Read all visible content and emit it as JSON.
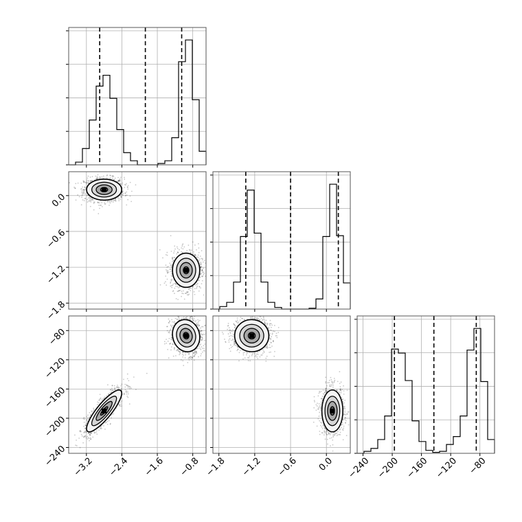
{
  "chart_data": {
    "type": "corner",
    "parameters": [
      {
        "id": "p0",
        "label": "",
        "range": [
          -3.6,
          -0.5
        ],
        "ticks": [
          "−3.2",
          "−2.4",
          "−1.6",
          "−0.8"
        ],
        "tick_values": [
          -3.2,
          -2.4,
          -1.6,
          -0.8
        ]
      },
      {
        "id": "p1",
        "label": "",
        "range": [
          -1.9,
          0.4
        ],
        "ticks": [
          "−1.8",
          "−1.2",
          "−0.6",
          "0.0"
        ],
        "tick_values": [
          -1.8,
          -1.2,
          -0.6,
          0.0
        ]
      },
      {
        "id": "p2",
        "label": "",
        "range": [
          -248,
          -60
        ],
        "ticks": [
          "−240",
          "−200",
          "−160",
          "−120",
          "−80"
        ],
        "tick_values": [
          -240,
          -200,
          -160,
          -120,
          -80
        ]
      }
    ],
    "histograms": [
      {
        "param": "p0",
        "bin_edges": [
          -3.6,
          -3.445,
          -3.29,
          -3.135,
          -2.98,
          -2.825,
          -2.67,
          -2.515,
          -2.36,
          -2.205,
          -2.05,
          -1.895,
          -1.74,
          -1.585,
          -1.43,
          -1.275,
          -1.12,
          -0.965,
          -0.81,
          -0.655,
          -0.5
        ],
        "counts": [
          0,
          2,
          12,
          33,
          58,
          66,
          49,
          26,
          9,
          3,
          0,
          0,
          0,
          1,
          3,
          20,
          76,
          92,
          48,
          10
        ],
        "quantiles": [
          -2.9,
          -1.87,
          -1.05
        ]
      },
      {
        "param": "p1",
        "bin_edges": [
          -1.9,
          -1.785,
          -1.67,
          -1.555,
          -1.44,
          -1.325,
          -1.21,
          -1.095,
          -0.98,
          -0.865,
          -0.75,
          -0.635,
          -0.52,
          -0.405,
          -0.29,
          -0.175,
          -0.06,
          0.055,
          0.17,
          0.285,
          0.4
        ],
        "counts": [
          0,
          3,
          8,
          32,
          86,
          141,
          90,
          32,
          8,
          2,
          0,
          0,
          0,
          0,
          1,
          12,
          86,
          148,
          87,
          31
        ],
        "quantiles": [
          -1.35,
          -0.6,
          0.2
        ]
      },
      {
        "param": "p2",
        "bin_edges": [
          -248,
          -238.6,
          -229.2,
          -219.8,
          -210.4,
          -201,
          -191.6,
          -182.2,
          -172.8,
          -163.4,
          -154,
          -144.6,
          -135.2,
          -125.8,
          -116.4,
          -107,
          -97.6,
          -88.2,
          -78.8,
          -69.4,
          -60
        ],
        "counts": [
          0,
          2,
          5,
          14,
          38,
          106,
          102,
          74,
          33,
          12,
          3,
          1,
          2,
          9,
          17,
          38,
          105,
          127,
          73,
          14
        ],
        "quantiles": [
          -197,
          -143,
          -85
        ]
      }
    ],
    "modes": [
      {
        "p0": -2.8,
        "p1": 0.1,
        "p2": -190,
        "sd0": 0.18,
        "sd1": 0.08,
        "sd2": 13,
        "corr_p0_p2": 0.85
      },
      {
        "p0": -0.95,
        "p1": -1.25,
        "p2": -87,
        "sd0": 0.14,
        "sd1": 0.13,
        "sd2": 10,
        "corr_p0_p2": -0.1
      }
    ],
    "contour_levels": 3,
    "grid": true,
    "style": {
      "line_color": "#000000",
      "grid_color": "#b0b0b0",
      "contour_fill_colors": [
        "#f4f4f4",
        "#d6d6d6",
        "#a8a8a8",
        "#6a6a6a"
      ],
      "scatter_color": "#000000",
      "quantile_line": "dashed"
    }
  }
}
